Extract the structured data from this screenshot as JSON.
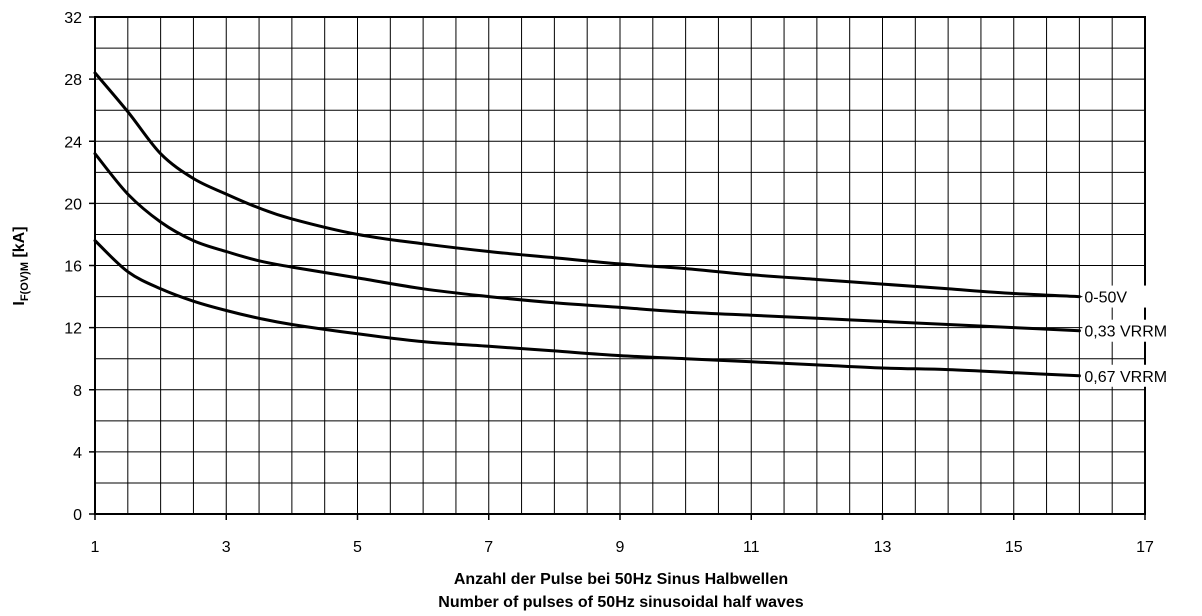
{
  "chart_data": {
    "type": "line",
    "title": "",
    "xlabel_lines": [
      "Anzahl der Pulse bei 50Hz Sinus Halbwellen",
      "Number of pulses of 50Hz sinusoidal half waves"
    ],
    "ylabel": {
      "main": "I",
      "subscript": "F(OV)M",
      "unit": " [kA]"
    },
    "xlim": [
      1,
      17
    ],
    "ylim": [
      0,
      32
    ],
    "x_ticks": [
      1,
      3,
      5,
      7,
      9,
      11,
      13,
      15,
      17
    ],
    "y_ticks": [
      0,
      4,
      8,
      12,
      16,
      20,
      24,
      28,
      32
    ],
    "x_minor_step": 0.5,
    "y_minor_step": 2,
    "grid": true,
    "colors": {
      "line": "#000000",
      "grid": "#000000",
      "background": "#ffffff"
    },
    "series": [
      {
        "name": "0-50V",
        "x": [
          1,
          1.5,
          2,
          2.5,
          3,
          3.5,
          4,
          5,
          6,
          7,
          8,
          9,
          10,
          11,
          12,
          13,
          14,
          15,
          16
        ],
        "y": [
          28.4,
          25.9,
          23.2,
          21.6,
          20.6,
          19.7,
          19.0,
          18.0,
          17.4,
          16.9,
          16.5,
          16.1,
          15.8,
          15.4,
          15.1,
          14.8,
          14.5,
          14.2,
          14.0
        ]
      },
      {
        "name": "0,33 VRRM",
        "x": [
          1,
          1.5,
          2,
          2.5,
          3,
          3.5,
          4,
          5,
          6,
          7,
          8,
          9,
          10,
          11,
          12,
          13,
          14,
          15,
          16
        ],
        "y": [
          23.2,
          20.6,
          18.8,
          17.6,
          16.9,
          16.3,
          15.9,
          15.2,
          14.5,
          14.0,
          13.6,
          13.3,
          13.0,
          12.8,
          12.6,
          12.4,
          12.2,
          12.0,
          11.8
        ]
      },
      {
        "name": "0,67 VRRM",
        "x": [
          1,
          1.5,
          2,
          2.5,
          3,
          3.5,
          4,
          5,
          6,
          7,
          8,
          9,
          10,
          11,
          12,
          13,
          14,
          15,
          16
        ],
        "y": [
          17.6,
          15.6,
          14.5,
          13.7,
          13.1,
          12.6,
          12.2,
          11.6,
          11.1,
          10.8,
          10.5,
          10.2,
          10.0,
          9.8,
          9.6,
          9.4,
          9.3,
          9.1,
          8.9
        ]
      }
    ]
  }
}
